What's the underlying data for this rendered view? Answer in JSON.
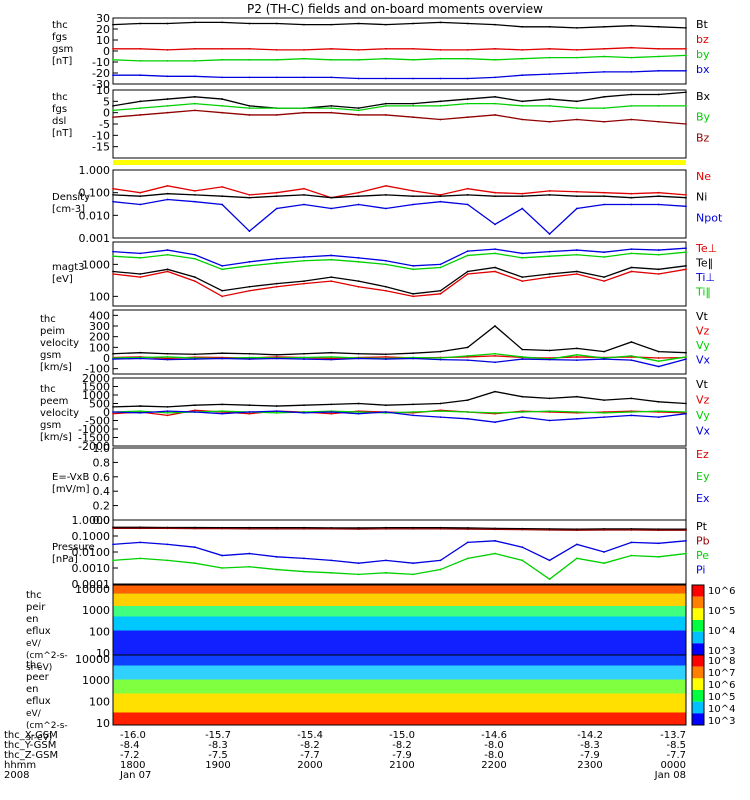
{
  "title": "P2 (TH-C) fields and on-board moments overview",
  "colors": {
    "black": "#000000",
    "red": "#e00000",
    "green": "#00d000",
    "blue": "#0000e0",
    "darkred": "#900000",
    "yellow": "#ffff00"
  },
  "chart_data": [
    {
      "type": "line",
      "ylabel_lines": [
        "thc",
        "fgs",
        "gsm",
        "[nT]"
      ],
      "ylim": [
        -30,
        30
      ],
      "ytick_labels": [
        [
          "30",
          30
        ],
        [
          "20",
          20
        ],
        [
          "10",
          10
        ],
        [
          "0",
          0
        ],
        [
          "-10",
          -10
        ],
        [
          "-20",
          -20
        ],
        [
          "-30",
          -30
        ]
      ],
      "series": [
        {
          "name": "Bt",
          "color": "black",
          "values": [
            24,
            25,
            25,
            26,
            26,
            25,
            25,
            24,
            24,
            25,
            24,
            25,
            26,
            25,
            24,
            22,
            22,
            21,
            22,
            23,
            22,
            21
          ]
        },
        {
          "name": "bz",
          "color": "red",
          "values": [
            2,
            2,
            1,
            2,
            2,
            2,
            1,
            1,
            2,
            1,
            2,
            2,
            1,
            1,
            2,
            1,
            2,
            1,
            2,
            3,
            2,
            2
          ]
        },
        {
          "name": "by",
          "color": "green",
          "values": [
            -8,
            -9,
            -9,
            -9,
            -8,
            -8,
            -8,
            -7,
            -8,
            -8,
            -7,
            -8,
            -7,
            -7,
            -8,
            -7,
            -6,
            -6,
            -5,
            -6,
            -5,
            -4
          ]
        },
        {
          "name": "bx",
          "color": "blue",
          "values": [
            -22,
            -22,
            -23,
            -23,
            -24,
            -24,
            -24,
            -24,
            -24,
            -25,
            -25,
            -25,
            -25,
            -25,
            -24,
            -22,
            -21,
            -20,
            -19,
            -19,
            -18,
            -18
          ]
        }
      ]
    },
    {
      "type": "line",
      "ylabel_lines": [
        "thc",
        "fgs",
        "dsl",
        "[nT]"
      ],
      "ylim": [
        -20,
        10
      ],
      "ytick_labels": [
        [
          "10",
          10
        ],
        [
          "5",
          5
        ],
        [
          "0",
          0
        ],
        [
          "-5",
          -5
        ],
        [
          "-10",
          -10
        ],
        [
          "-15",
          -15
        ]
      ],
      "series": [
        {
          "name": "Bx",
          "color": "black",
          "values": [
            3,
            5,
            6,
            7,
            6,
            3,
            2,
            2,
            3,
            2,
            4,
            4,
            5,
            6,
            7,
            5,
            6,
            5,
            7,
            8,
            8,
            9
          ]
        },
        {
          "name": "By",
          "color": "green",
          "values": [
            1,
            2,
            3,
            4,
            3,
            2,
            2,
            2,
            2,
            1,
            3,
            3,
            3,
            4,
            4,
            3,
            3,
            2,
            2,
            3,
            3,
            3
          ]
        },
        {
          "name": "Bz",
          "color": "darkred",
          "values": [
            -2,
            -1,
            0,
            1,
            0,
            -1,
            -1,
            0,
            0,
            -1,
            -1,
            -2,
            -3,
            -2,
            -1,
            -3,
            -4,
            -3,
            -4,
            -3,
            -4,
            -5
          ]
        }
      ]
    },
    {
      "type": "line",
      "ylabel_lines": [
        "Density",
        "[cm-3]"
      ],
      "ylog": true,
      "ylim": [
        0.001,
        1.0
      ],
      "ytick_labels": [
        [
          "1.000",
          1.0
        ],
        [
          "0.100",
          0.1
        ],
        [
          "0.010",
          0.01
        ],
        [
          "0.001",
          0.001
        ]
      ],
      "series": [
        {
          "name": "Ne",
          "color": "red",
          "values": [
            0.15,
            0.1,
            0.2,
            0.12,
            0.18,
            0.08,
            0.1,
            0.15,
            0.06,
            0.1,
            0.2,
            0.12,
            0.08,
            0.15,
            0.1,
            0.09,
            0.12,
            0.11,
            0.1,
            0.09,
            0.1,
            0.08
          ]
        },
        {
          "name": "Ni",
          "color": "black",
          "values": [
            0.08,
            0.07,
            0.09,
            0.08,
            0.07,
            0.06,
            0.07,
            0.08,
            0.06,
            0.07,
            0.08,
            0.07,
            0.07,
            0.08,
            0.07,
            0.07,
            0.08,
            0.07,
            0.07,
            0.06,
            0.07,
            0.06
          ]
        },
        {
          "name": "Npot",
          "color": "blue",
          "values": [
            0.04,
            0.03,
            0.05,
            0.04,
            0.03,
            0.002,
            0.02,
            0.03,
            0.02,
            0.03,
            0.02,
            0.03,
            0.04,
            0.03,
            0.004,
            0.02,
            0.0015,
            0.02,
            0.03,
            0.03,
            0.03,
            0.025
          ]
        }
      ]
    },
    {
      "type": "line",
      "ylabel_lines": [
        "magt3",
        "[eV]"
      ],
      "ylog": true,
      "ylim": [
        50,
        5000
      ],
      "ytick_labels": [
        [
          "1000",
          1000
        ],
        [
          "100",
          100
        ]
      ],
      "series": [
        {
          "name": "Te⊥",
          "color": "red",
          "values": [
            500,
            400,
            600,
            300,
            100,
            150,
            200,
            250,
            300,
            200,
            150,
            100,
            120,
            500,
            600,
            300,
            400,
            500,
            300,
            600,
            500,
            700
          ]
        },
        {
          "name": "Te‖",
          "color": "black",
          "values": [
            600,
            500,
            700,
            400,
            150,
            200,
            250,
            300,
            400,
            300,
            200,
            120,
            150,
            600,
            800,
            400,
            500,
            600,
            400,
            800,
            700,
            900
          ]
        },
        {
          "name": "Ti⊥",
          "color": "blue",
          "values": [
            2500,
            2200,
            2800,
            2000,
            900,
            1200,
            1500,
            1700,
            1900,
            1600,
            1300,
            900,
            1000,
            2600,
            3000,
            2200,
            2500,
            2800,
            2400,
            3000,
            2800,
            3200
          ]
        },
        {
          "name": "Ti‖",
          "color": "green",
          "values": [
            1800,
            1600,
            2000,
            1500,
            700,
            900,
            1100,
            1300,
            1400,
            1200,
            1000,
            700,
            800,
            1900,
            2200,
            1600,
            1800,
            2000,
            1700,
            2200,
            2000,
            2400
          ]
        }
      ]
    },
    {
      "type": "line",
      "ylabel_lines": [
        "thc",
        "peim",
        "velocity",
        "gsm",
        "[km/s]"
      ],
      "ylim": [
        -150,
        450
      ],
      "ytick_labels": [
        [
          "400",
          400
        ],
        [
          "300",
          300
        ],
        [
          "200",
          200
        ],
        [
          "100",
          100
        ],
        [
          "0",
          0
        ],
        [
          "-100",
          -100
        ]
      ],
      "series": [
        {
          "name": "Vt",
          "color": "black",
          "values": [
            40,
            50,
            40,
            35,
            45,
            40,
            30,
            40,
            50,
            40,
            35,
            45,
            60,
            100,
            300,
            80,
            70,
            90,
            60,
            150,
            60,
            50
          ]
        },
        {
          "name": "Vz",
          "color": "red",
          "values": [
            5,
            10,
            -5,
            8,
            5,
            0,
            10,
            5,
            -5,
            5,
            10,
            0,
            5,
            10,
            20,
            5,
            0,
            10,
            5,
            10,
            0,
            5
          ]
        },
        {
          "name": "Vy",
          "color": "green",
          "values": [
            0,
            5,
            10,
            0,
            -5,
            5,
            0,
            5,
            10,
            0,
            -5,
            5,
            0,
            20,
            40,
            10,
            -10,
            30,
            0,
            20,
            -30,
            10
          ]
        },
        {
          "name": "Vx",
          "color": "blue",
          "values": [
            -10,
            -5,
            -15,
            -10,
            -5,
            -10,
            -5,
            -10,
            -15,
            -5,
            -10,
            -5,
            -15,
            -20,
            -40,
            -10,
            -15,
            -20,
            -10,
            -20,
            -80,
            -10
          ]
        }
      ]
    },
    {
      "type": "line",
      "ylabel_lines": [
        "thc",
        "peem",
        "velocity",
        "gsm",
        "[km/s]"
      ],
      "ylim": [
        -2000,
        2000
      ],
      "ytick_labels": [
        [
          "2000",
          2000
        ],
        [
          "1500",
          1500
        ],
        [
          "1000",
          1000
        ],
        [
          "500",
          500
        ],
        [
          "0",
          0
        ],
        [
          "-500",
          -500
        ],
        [
          "-1000",
          -1000
        ],
        [
          "-1500",
          -1500
        ],
        [
          "-2000",
          -2000
        ]
      ],
      "series": [
        {
          "name": "Vt",
          "color": "black",
          "values": [
            300,
            350,
            300,
            400,
            450,
            400,
            350,
            400,
            450,
            500,
            400,
            450,
            500,
            700,
            1200,
            900,
            800,
            900,
            700,
            800,
            600,
            500
          ]
        },
        {
          "name": "Vz",
          "color": "red",
          "values": [
            -100,
            0,
            -200,
            100,
            0,
            -100,
            50,
            0,
            -100,
            50,
            0,
            -50,
            100,
            0,
            -100,
            50,
            0,
            -50,
            0,
            50,
            0,
            -50
          ]
        },
        {
          "name": "Vy",
          "color": "green",
          "values": [
            0,
            50,
            -50,
            0,
            50,
            0,
            -50,
            0,
            50,
            0,
            -50,
            0,
            50,
            0,
            -50,
            0,
            50,
            0,
            -50,
            0,
            50,
            0
          ]
        },
        {
          "name": "Vx",
          "color": "blue",
          "values": [
            0,
            -50,
            50,
            0,
            -100,
            0,
            50,
            -50,
            0,
            -100,
            0,
            -200,
            -300,
            -400,
            -600,
            -300,
            -500,
            -400,
            -300,
            -200,
            -300,
            -100
          ]
        }
      ]
    },
    {
      "type": "line",
      "ylabel_lines": [
        "E=-VxB",
        "[mV/m]"
      ],
      "ylim": [
        0.0,
        1.0
      ],
      "ytick_labels": [
        [
          "1.0",
          1.0
        ],
        [
          "0.8",
          0.8
        ],
        [
          "0.6",
          0.6
        ],
        [
          "0.4",
          0.4
        ],
        [
          "0.2",
          0.2
        ],
        [
          "0.0",
          0.0
        ]
      ],
      "series": [
        {
          "name": "Ez",
          "color": "red",
          "values": []
        },
        {
          "name": "Ey",
          "color": "green",
          "values": []
        },
        {
          "name": "Ex",
          "color": "blue",
          "values": []
        }
      ]
    },
    {
      "type": "line",
      "ylabel_lines": [
        "Pressure",
        "[nPa]"
      ],
      "ylog": true,
      "ylim": [
        0.0001,
        1.0
      ],
      "ytick_labels": [
        [
          "1.0000",
          1.0
        ],
        [
          "0.1000",
          0.1
        ],
        [
          "0.0100",
          0.01
        ],
        [
          "0.0010",
          0.001
        ],
        [
          "0.0001",
          0.0001
        ]
      ],
      "series": [
        {
          "name": "Pt",
          "color": "black",
          "values": [
            0.35,
            0.35,
            0.34,
            0.34,
            0.33,
            0.33,
            0.33,
            0.33,
            0.32,
            0.32,
            0.33,
            0.33,
            0.33,
            0.32,
            0.3,
            0.29,
            0.28,
            0.27,
            0.28,
            0.28,
            0.27,
            0.27
          ]
        },
        {
          "name": "Pb",
          "color": "darkred",
          "values": [
            0.3,
            0.3,
            0.3,
            0.29,
            0.29,
            0.28,
            0.28,
            0.28,
            0.28,
            0.27,
            0.28,
            0.28,
            0.28,
            0.27,
            0.26,
            0.25,
            0.24,
            0.23,
            0.24,
            0.24,
            0.23,
            0.23
          ]
        },
        {
          "name": "Pe",
          "color": "green",
          "values": [
            0.003,
            0.004,
            0.003,
            0.002,
            0.001,
            0.0012,
            0.0008,
            0.0006,
            0.0005,
            0.0004,
            0.0005,
            0.0004,
            0.0008,
            0.004,
            0.008,
            0.003,
            0.0002,
            0.004,
            0.002,
            0.006,
            0.005,
            0.008
          ]
        },
        {
          "name": "Pi",
          "color": "blue",
          "values": [
            0.03,
            0.04,
            0.03,
            0.02,
            0.006,
            0.008,
            0.005,
            0.004,
            0.003,
            0.002,
            0.003,
            0.002,
            0.003,
            0.04,
            0.05,
            0.02,
            0.003,
            0.03,
            0.01,
            0.04,
            0.035,
            0.05
          ]
        }
      ]
    },
    {
      "type": "heatmap",
      "ylabel_lines": [
        "thc",
        "peir",
        "en",
        "eflux",
        "eV/",
        "(cm^2-s-",
        "sr-eV)"
      ],
      "ylog": true,
      "ylim": [
        8,
        15000
      ],
      "ytick_labels": [
        [
          "10000",
          10000
        ],
        [
          "1000",
          1000
        ],
        [
          "100",
          100
        ],
        [
          "10",
          10
        ]
      ],
      "colorbar_labels": [
        "10^6",
        "10^5",
        "10^4",
        "10^3"
      ]
    },
    {
      "type": "heatmap",
      "ylabel_lines": [
        "thc",
        "peer",
        "en",
        "eflux",
        "eV/",
        "(cm^2-s-",
        "sr-eV)"
      ],
      "ylog": true,
      "ylim": [
        8,
        15000
      ],
      "ytick_labels": [
        [
          "10000",
          10000
        ],
        [
          "1000",
          1000
        ],
        [
          "100",
          100
        ],
        [
          "10",
          10
        ]
      ],
      "colorbar_labels": [
        "10^8",
        "10^7",
        "10^6",
        "10^5",
        "10^4",
        "10^3"
      ]
    }
  ],
  "xaxis": {
    "rows": [
      {
        "label": "thc_X-GSM",
        "values": [
          "-16.0",
          "-15.7",
          "-15.4",
          "-15.0",
          "-14.6",
          "-14.2",
          "-13.7"
        ]
      },
      {
        "label": "thc_Y-GSM",
        "values": [
          "-8.4",
          "-8.3",
          "-8.2",
          "-8.2",
          "-8.0",
          "-8.3",
          "-8.5"
        ]
      },
      {
        "label": "thc_Z-GSM",
        "values": [
          "-7.2",
          "-7.5",
          "-7.7",
          "-7.9",
          "-8.0",
          "-7.9",
          "-7.7"
        ]
      },
      {
        "label": "hhmm",
        "values": [
          "1800",
          "1900",
          "2000",
          "2100",
          "2200",
          "2300",
          "0000"
        ]
      },
      {
        "label": "2008",
        "values": [
          "Jan 07",
          "",
          "",
          "",
          "",
          "",
          "Jan 08"
        ]
      }
    ]
  }
}
